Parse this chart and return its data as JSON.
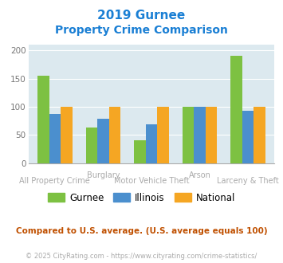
{
  "title_line1": "2019 Gurnee",
  "title_line2": "Property Crime Comparison",
  "categories": [
    "All Property Crime",
    "Burglary",
    "Motor Vehicle Theft",
    "Arson",
    "Larceny & Theft"
  ],
  "top_labels": {
    "1": "Burglary",
    "3": "Arson"
  },
  "bottom_labels": {
    "0": "All Property Crime",
    "2": "Motor Vehicle Theft",
    "4": "Larceny & Theft"
  },
  "gurnee": [
    155,
    63,
    40,
    100,
    191
  ],
  "illinois": [
    87,
    79,
    69,
    100,
    93
  ],
  "national": [
    100,
    100,
    100,
    100,
    100
  ],
  "gurnee_color": "#7dc142",
  "illinois_color": "#4b8fce",
  "national_color": "#f5a623",
  "bg_color": "#dce9ef",
  "title_color": "#1a7fd4",
  "ylim": [
    0,
    210
  ],
  "yticks": [
    0,
    50,
    100,
    150,
    200
  ],
  "legend_labels": [
    "Gurnee",
    "Illinois",
    "National"
  ],
  "footnote": "Compared to U.S. average. (U.S. average equals 100)",
  "copyright": "© 2025 CityRating.com - https://www.cityrating.com/crime-statistics/",
  "footnote_color": "#c05000",
  "copyright_color": "#aaaaaa",
  "label_color": "#aaaaaa"
}
